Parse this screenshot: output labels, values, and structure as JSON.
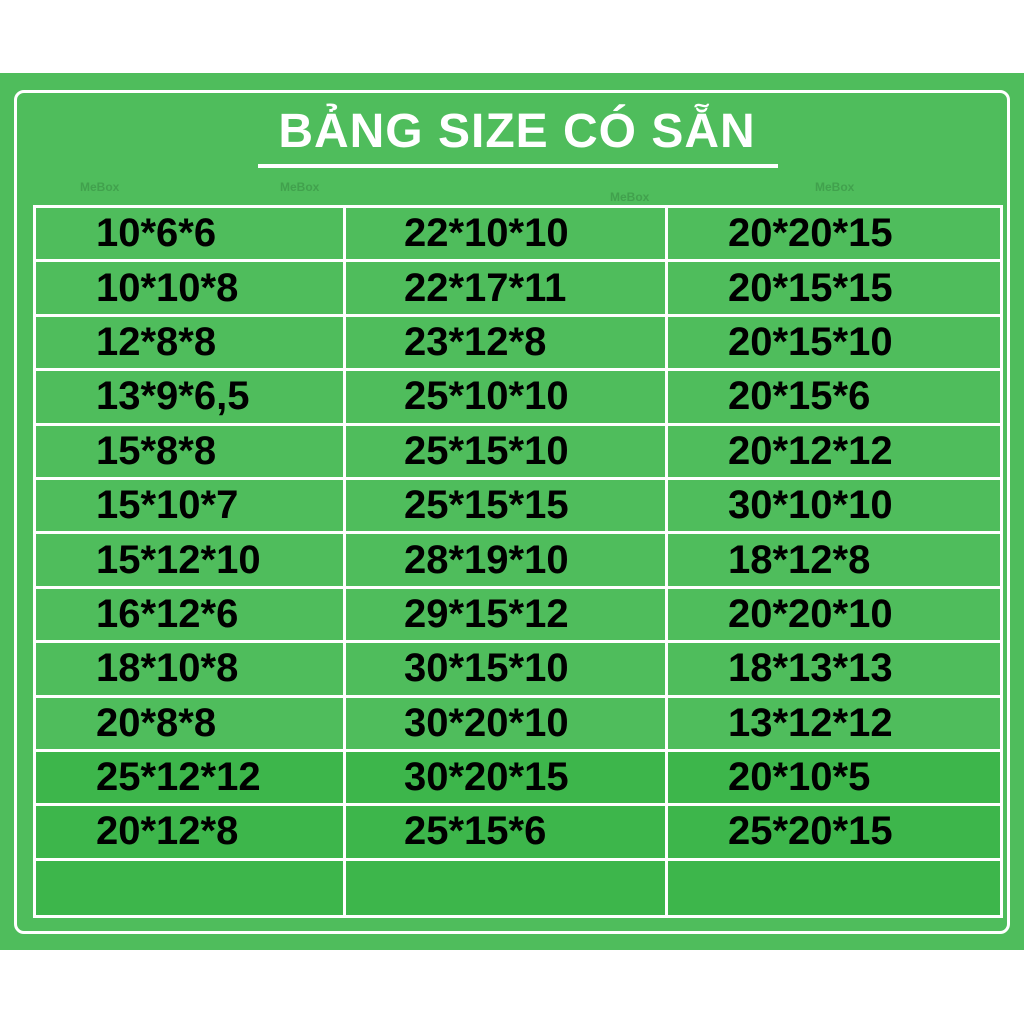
{
  "title": "BẢNG SIZE CÓ SẴN",
  "watermark": "MeBox",
  "colors": {
    "background": "#4fbd5c",
    "lower_rows": "#3db64b",
    "lines": "#ffffff",
    "text": "#000000"
  },
  "rows": [
    [
      "10*6*6",
      "22*10*10",
      "20*20*15"
    ],
    [
      "10*10*8",
      "22*17*11",
      "20*15*15"
    ],
    [
      "12*8*8",
      "23*12*8",
      "20*15*10"
    ],
    [
      "13*9*6,5",
      "25*10*10",
      "20*15*6"
    ],
    [
      "15*8*8",
      "25*15*10",
      "20*12*12"
    ],
    [
      "15*10*7",
      "25*15*15",
      "30*10*10"
    ],
    [
      "15*12*10",
      "28*19*10",
      "18*12*8"
    ],
    [
      "16*12*6",
      "29*15*12",
      "20*20*10"
    ],
    [
      "18*10*8",
      "30*15*10",
      "18*13*13"
    ],
    [
      "20*8*8",
      "30*20*10",
      "13*12*12"
    ],
    [
      "25*12*12",
      "30*20*15",
      "20*10*5"
    ],
    [
      "20*12*8",
      "25*15*6",
      "25*20*15"
    ],
    [
      "",
      "",
      ""
    ]
  ]
}
